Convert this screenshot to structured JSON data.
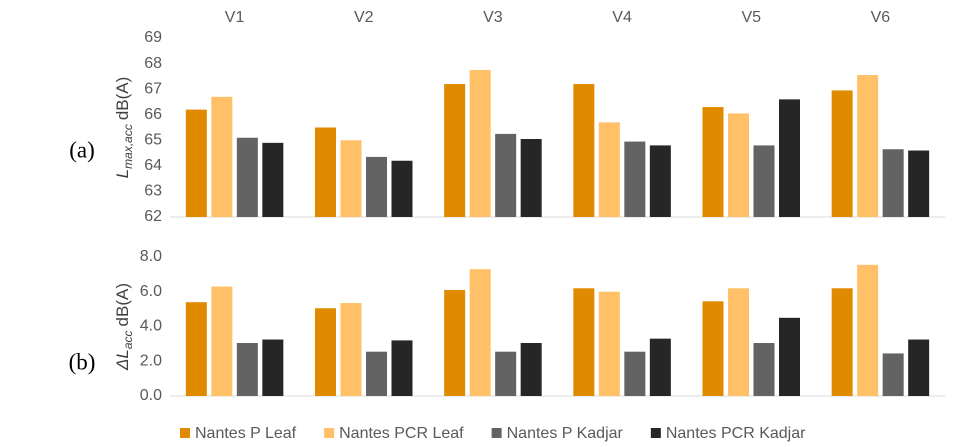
{
  "chart_data": [
    {
      "type": "bar",
      "panel_label": "(a)",
      "y_label": {
        "symbol": "L",
        "subscript": "max,acc",
        "unit": "dB(A)"
      },
      "categories": [
        "V1",
        "V2",
        "V3",
        "V4",
        "V5",
        "V6"
      ],
      "series": [
        {
          "color": "#e08a00",
          "values": [
            66.2,
            65.5,
            67.2,
            67.2,
            66.3,
            66.95
          ]
        },
        {
          "color": "#ffc067",
          "values": [
            66.7,
            65.0,
            67.75,
            65.7,
            66.05,
            67.55
          ]
        },
        {
          "color": "#636363",
          "values": [
            65.1,
            64.35,
            65.25,
            64.95,
            64.8,
            64.65
          ]
        },
        {
          "color": "#262626",
          "values": [
            64.9,
            64.2,
            65.05,
            64.8,
            66.6,
            64.6
          ]
        }
      ],
      "ylim": [
        62,
        69
      ],
      "yticks": [
        62,
        63,
        64,
        65,
        66,
        67,
        68,
        69
      ],
      "grid": false
    },
    {
      "type": "bar",
      "panel_label": "(b)",
      "y_label": {
        "symbol": "ΔL",
        "subscript": "acc",
        "unit": "dB(A)"
      },
      "series": [
        {
          "name": "Nantes P Leaf",
          "color": "#e08a00",
          "values": [
            5.4,
            5.05,
            6.1,
            6.2,
            5.45,
            6.2
          ]
        },
        {
          "name": "Nantes PCR Leaf",
          "color": "#ffc067",
          "values": [
            6.3,
            5.35,
            7.3,
            6.0,
            6.2,
            7.55
          ]
        },
        {
          "name": "Nantes P Kadjar",
          "color": "#636363",
          "values": [
            3.05,
            2.55,
            2.55,
            2.55,
            3.05,
            2.45
          ]
        },
        {
          "name": "Nantes PCR Kadjar",
          "color": "#262626",
          "values": [
            3.25,
            3.2,
            3.05,
            3.3,
            4.5,
            3.25
          ]
        }
      ],
      "ylim": [
        0,
        8
      ],
      "yticks": [
        {
          "value": 0,
          "label": "0.0"
        },
        {
          "value": 2,
          "label": "2.0"
        },
        {
          "value": 4,
          "label": "4.0"
        },
        {
          "value": 6,
          "label": "6.0"
        },
        {
          "value": 8,
          "label": "8.0"
        }
      ],
      "grid": false
    }
  ]
}
